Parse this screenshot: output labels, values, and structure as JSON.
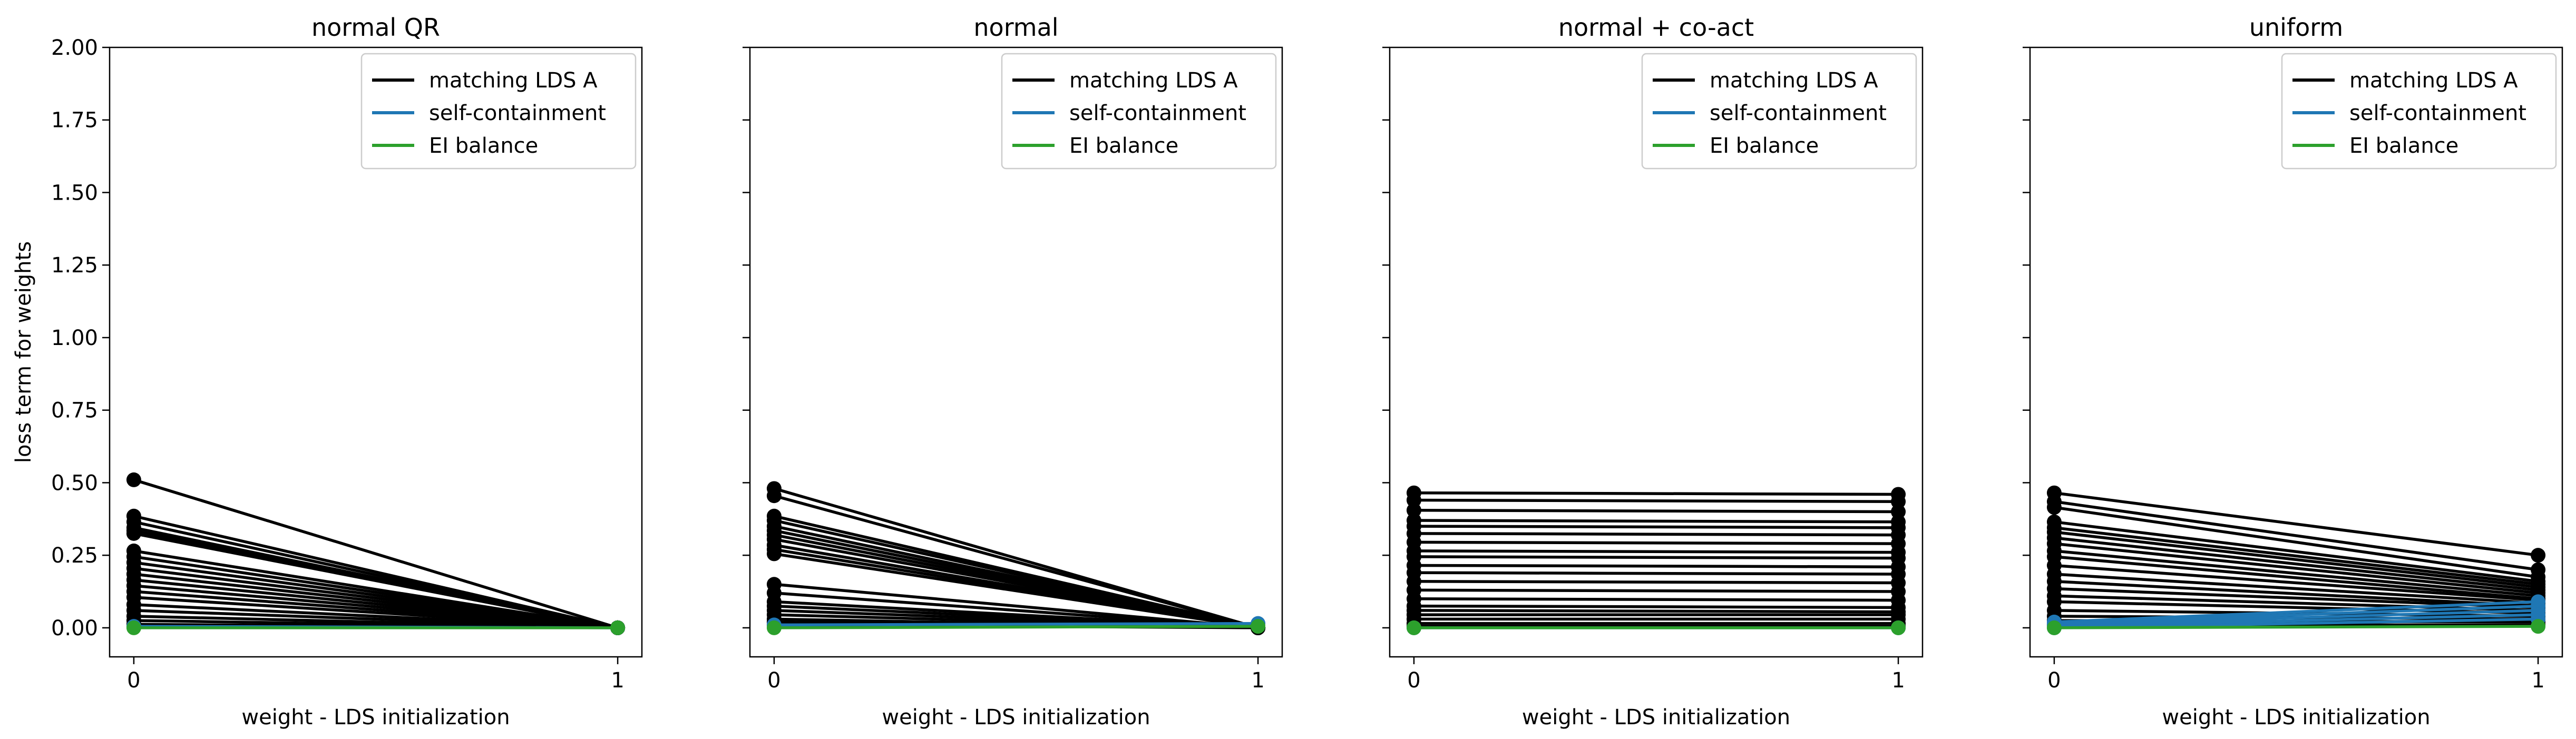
{
  "chart_data": [
    {
      "type": "line",
      "title": "normal QR",
      "xlabel": "weight - LDS initialization",
      "ylabel": "loss term for weights",
      "xlim": [
        -0.05,
        1.05
      ],
      "ylim": [
        -0.1,
        2.0
      ],
      "xticks": [
        0,
        1
      ],
      "yticks": [
        0.0,
        0.25,
        0.5,
        0.75,
        1.0,
        1.25,
        1.5,
        1.75,
        2.0
      ],
      "ytick_labels": [
        "0.00",
        "0.25",
        "0.50",
        "0.75",
        "1.00",
        "1.25",
        "1.50",
        "1.75",
        "2.00"
      ],
      "grid": false,
      "legend": {
        "position": "upper right",
        "entries": [
          {
            "label": "matching LDS A",
            "color": "#000000"
          },
          {
            "label": "self-containment",
            "color": "#1f77b4"
          },
          {
            "label": "EI balance",
            "color": "#2ca02c"
          }
        ]
      },
      "x": [
        0,
        1
      ],
      "series": [
        {
          "group": "matching LDS A",
          "color": "#000000",
          "lines": [
            [
              0.51,
              0.0
            ],
            [
              0.385,
              0.0
            ],
            [
              0.365,
              0.0
            ],
            [
              0.345,
              0.0
            ],
            [
              0.335,
              0.0
            ],
            [
              0.325,
              0.0
            ],
            [
              0.265,
              0.0
            ],
            [
              0.245,
              0.0
            ],
            [
              0.225,
              0.0
            ],
            [
              0.205,
              0.0
            ],
            [
              0.185,
              0.0
            ],
            [
              0.165,
              0.0
            ],
            [
              0.145,
              0.0
            ],
            [
              0.125,
              0.0
            ],
            [
              0.105,
              0.0
            ],
            [
              0.08,
              0.0
            ],
            [
              0.06,
              0.0
            ],
            [
              0.04,
              0.0
            ],
            [
              0.025,
              0.0
            ],
            [
              0.012,
              0.0
            ]
          ]
        },
        {
          "group": "self-containment",
          "color": "#1f77b4",
          "lines": [
            [
              0.005,
              0.0
            ]
          ]
        },
        {
          "group": "EI balance",
          "color": "#2ca02c",
          "lines": [
            [
              0.0,
              0.0
            ]
          ]
        }
      ]
    },
    {
      "type": "line",
      "title": "normal",
      "xlabel": "weight - LDS initialization",
      "ylabel": "",
      "xlim": [
        -0.05,
        1.05
      ],
      "ylim": [
        -0.1,
        2.0
      ],
      "xticks": [
        0,
        1
      ],
      "grid": false,
      "legend": {
        "position": "upper right",
        "entries": [
          {
            "label": "matching LDS A",
            "color": "#000000"
          },
          {
            "label": "self-containment",
            "color": "#1f77b4"
          },
          {
            "label": "EI balance",
            "color": "#2ca02c"
          }
        ]
      },
      "x": [
        0,
        1
      ],
      "series": [
        {
          "group": "matching LDS A",
          "color": "#000000",
          "lines": [
            [
              0.48,
              0.0
            ],
            [
              0.455,
              0.0
            ],
            [
              0.385,
              0.0
            ],
            [
              0.37,
              0.0
            ],
            [
              0.35,
              0.0
            ],
            [
              0.335,
              0.0
            ],
            [
              0.32,
              0.0
            ],
            [
              0.305,
              0.0
            ],
            [
              0.285,
              0.0
            ],
            [
              0.27,
              0.0
            ],
            [
              0.255,
              0.0
            ],
            [
              0.15,
              0.0
            ],
            [
              0.12,
              0.0
            ],
            [
              0.09,
              0.0
            ],
            [
              0.075,
              0.0
            ],
            [
              0.06,
              0.0
            ],
            [
              0.045,
              0.0
            ],
            [
              0.03,
              0.0
            ],
            [
              0.02,
              0.0
            ],
            [
              0.01,
              0.0
            ]
          ]
        },
        {
          "group": "self-containment",
          "color": "#1f77b4",
          "lines": [
            [
              0.01,
              0.015
            ]
          ]
        },
        {
          "group": "EI balance",
          "color": "#2ca02c",
          "lines": [
            [
              0.0,
              0.005
            ]
          ]
        }
      ]
    },
    {
      "type": "line",
      "title": "normal + co-act",
      "xlabel": "weight - LDS initialization",
      "ylabel": "",
      "xlim": [
        -0.05,
        1.05
      ],
      "ylim": [
        -0.1,
        2.0
      ],
      "xticks": [
        0,
        1
      ],
      "grid": false,
      "legend": {
        "position": "upper right",
        "entries": [
          {
            "label": "matching LDS A",
            "color": "#000000"
          },
          {
            "label": "self-containment",
            "color": "#1f77b4"
          },
          {
            "label": "EI balance",
            "color": "#2ca02c"
          }
        ]
      },
      "x": [
        0,
        1
      ],
      "series": [
        {
          "group": "matching LDS A",
          "color": "#000000",
          "lines": [
            [
              0.465,
              0.46
            ],
            [
              0.44,
              0.435
            ],
            [
              0.405,
              0.4
            ],
            [
              0.37,
              0.365
            ],
            [
              0.35,
              0.345
            ],
            [
              0.325,
              0.32
            ],
            [
              0.295,
              0.29
            ],
            [
              0.265,
              0.26
            ],
            [
              0.245,
              0.24
            ],
            [
              0.215,
              0.21
            ],
            [
              0.19,
              0.185
            ],
            [
              0.16,
              0.155
            ],
            [
              0.13,
              0.125
            ],
            [
              0.1,
              0.095
            ],
            [
              0.075,
              0.07
            ],
            [
              0.06,
              0.055
            ],
            [
              0.045,
              0.045
            ],
            [
              0.03,
              0.03
            ],
            [
              0.015,
              0.015
            ],
            [
              0.005,
              0.005
            ]
          ]
        },
        {
          "group": "self-containment",
          "color": "#1f77b4",
          "lines": [
            [
              0.0,
              0.0
            ]
          ]
        },
        {
          "group": "EI balance",
          "color": "#2ca02c",
          "lines": [
            [
              0.0,
              0.0
            ]
          ]
        }
      ]
    },
    {
      "type": "line",
      "title": "uniform",
      "xlabel": "weight - LDS initialization",
      "ylabel": "",
      "xlim": [
        -0.05,
        1.05
      ],
      "ylim": [
        -0.1,
        2.0
      ],
      "xticks": [
        0,
        1
      ],
      "grid": false,
      "legend": {
        "position": "upper right",
        "entries": [
          {
            "label": "matching LDS A",
            "color": "#000000"
          },
          {
            "label": "self-containment",
            "color": "#1f77b4"
          },
          {
            "label": "EI balance",
            "color": "#2ca02c"
          }
        ]
      },
      "x": [
        0,
        1
      ],
      "series": [
        {
          "group": "matching LDS A",
          "color": "#000000",
          "lines": [
            [
              0.465,
              0.25
            ],
            [
              0.435,
              0.2
            ],
            [
              0.415,
              0.175
            ],
            [
              0.365,
              0.16
            ],
            [
              0.345,
              0.15
            ],
            [
              0.33,
              0.14
            ],
            [
              0.31,
              0.13
            ],
            [
              0.29,
              0.12
            ],
            [
              0.265,
              0.11
            ],
            [
              0.245,
              0.1
            ],
            [
              0.215,
              0.095
            ],
            [
              0.185,
              0.085
            ],
            [
              0.16,
              0.075
            ],
            [
              0.135,
              0.07
            ],
            [
              0.11,
              0.06
            ],
            [
              0.09,
              0.05
            ],
            [
              0.06,
              0.04
            ],
            [
              0.04,
              0.03
            ],
            [
              0.025,
              0.02
            ],
            [
              0.01,
              0.01
            ]
          ]
        },
        {
          "group": "self-containment",
          "color": "#1f77b4",
          "lines": [
            [
              0.02,
              0.09
            ],
            [
              0.015,
              0.075
            ],
            [
              0.01,
              0.06
            ],
            [
              0.005,
              0.045
            ],
            [
              0.0,
              0.03
            ]
          ]
        },
        {
          "group": "EI balance",
          "color": "#2ca02c",
          "lines": [
            [
              0.0,
              0.005
            ]
          ]
        }
      ]
    }
  ]
}
